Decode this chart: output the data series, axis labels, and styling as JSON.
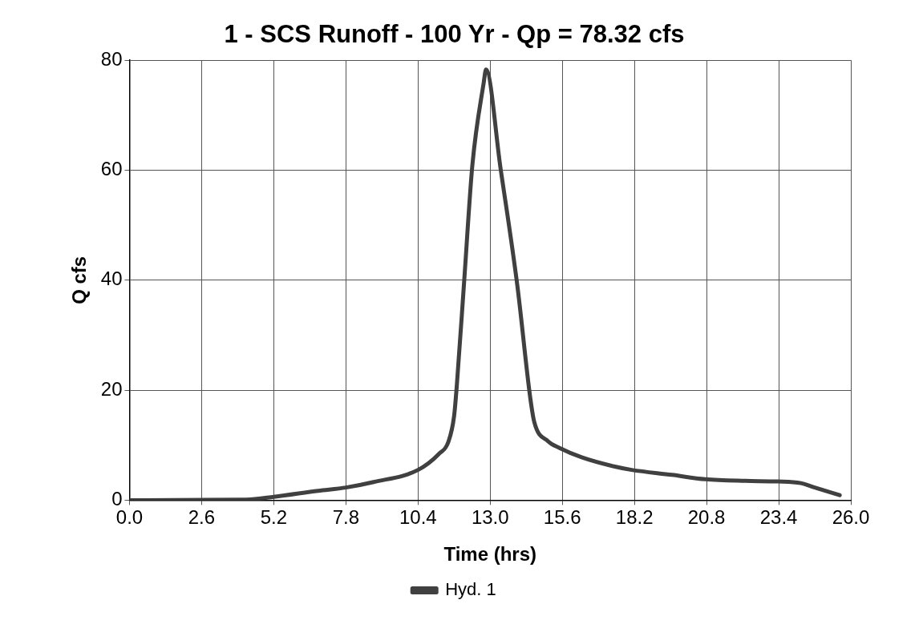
{
  "chart_data": {
    "type": "line",
    "title": "1 - SCS Runoff - 100 Yr - Qp = 78.32 cfs",
    "xlabel": "Time (hrs)",
    "ylabel": "Q cfs",
    "series": [
      {
        "name": "Hyd. 1",
        "color": "#404040",
        "x": [
          0,
          4.2,
          5.2,
          6.8,
          7.8,
          8.8,
          10.4,
          11.15,
          11.5,
          11.7,
          11.8,
          12.06,
          12.36,
          12.77,
          12.85,
          13.37,
          13.98,
          14.44,
          14.59,
          15.09,
          15.5,
          16.3,
          17.5,
          18.1,
          19.55,
          20.76,
          22.2,
          23.35,
          24.2,
          24.7,
          25.6
        ],
        "values": [
          0,
          0.1,
          0.6,
          1.7,
          2.3,
          3.3,
          5.5,
          8.4,
          10.7,
          15.3,
          21,
          39.6,
          61,
          76,
          78.32,
          60.5,
          39,
          18.8,
          14.2,
          10.7,
          9.5,
          7.8,
          6.1,
          5.5,
          4.6,
          3.8,
          3.5,
          3.4,
          3.1,
          2.3,
          0.9
        ]
      }
    ],
    "xlim": [
      0,
      26
    ],
    "xticks": [
      {
        "value": 0,
        "label": "0.0"
      },
      2.6,
      5.2,
      7.8,
      10.4,
      {
        "value": 13,
        "label": "13.0"
      },
      15.6,
      18.2,
      20.8,
      23.4,
      {
        "value": 26,
        "label": "26.0"
      }
    ],
    "ylim": [
      0,
      80
    ],
    "yticks": [
      0,
      20,
      40,
      60,
      80
    ],
    "grid": true,
    "legend": "bottom",
    "marker": "none",
    "line_style": "solid"
  }
}
